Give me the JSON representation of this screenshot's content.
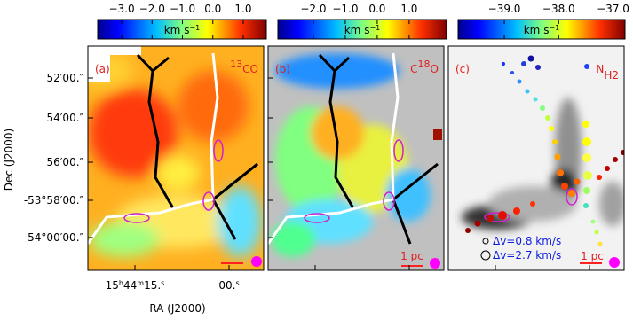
{
  "y_axis": {
    "label": "Dec (J2000)",
    "ticks": [
      "52′00.″",
      "54′00.″",
      "56′00.″",
      "-53°58′00.″",
      "-54°00′00.″"
    ]
  },
  "x_axis": {
    "label": "RA (J2000)",
    "ticks": [
      [
        "15",
        "h",
        "44",
        "m",
        "15.",
        "s"
      ],
      [
        "00.",
        "s"
      ]
    ]
  },
  "panels": [
    {
      "label": "(a)",
      "tracer": [
        "13",
        "CO"
      ],
      "colorbar": {
        "range": [
          -3.79,
          1.76
        ],
        "ticks": [
          {
            "value": -3,
            "label": "−3.0"
          },
          {
            "value": -2,
            "label": "−2.0"
          },
          {
            "value": -1,
            "label": "−1.0"
          },
          {
            "value": 0,
            "label": "0.0"
          },
          {
            "value": 1,
            "label": "1.0"
          }
        ],
        "unit": [
          "km s",
          "−1"
        ]
      }
    },
    {
      "label": "(b)",
      "tracer": [
        "C",
        "18",
        "O"
      ],
      "scale_bar": "1 pc",
      "colorbar": {
        "range": [
          -3.11,
          2.17
        ],
        "ticks": [
          {
            "value": -2,
            "label": "−2.0"
          },
          {
            "value": -1,
            "label": "−1.0"
          },
          {
            "value": 0,
            "label": "0.0"
          },
          {
            "value": 1,
            "label": "1.0"
          }
        ],
        "unit": [
          "km s",
          "−1"
        ]
      }
    },
    {
      "label": "(c)",
      "tracer": [
        "N",
        "H2"
      ],
      "scale_bar": "1 pc",
      "legend": [
        "Δv=0.8 km/s",
        "Δv=2.7 km/s"
      ],
      "colorbar": {
        "range": [
          -39.85,
          -36.78
        ],
        "ticks": [
          {
            "value": -39,
            "label": "−39.0"
          },
          {
            "value": -38,
            "label": "−38.0"
          },
          {
            "value": -37,
            "label": "−37.0"
          }
        ],
        "unit": [
          "km s",
          "−1"
        ]
      }
    }
  ]
}
